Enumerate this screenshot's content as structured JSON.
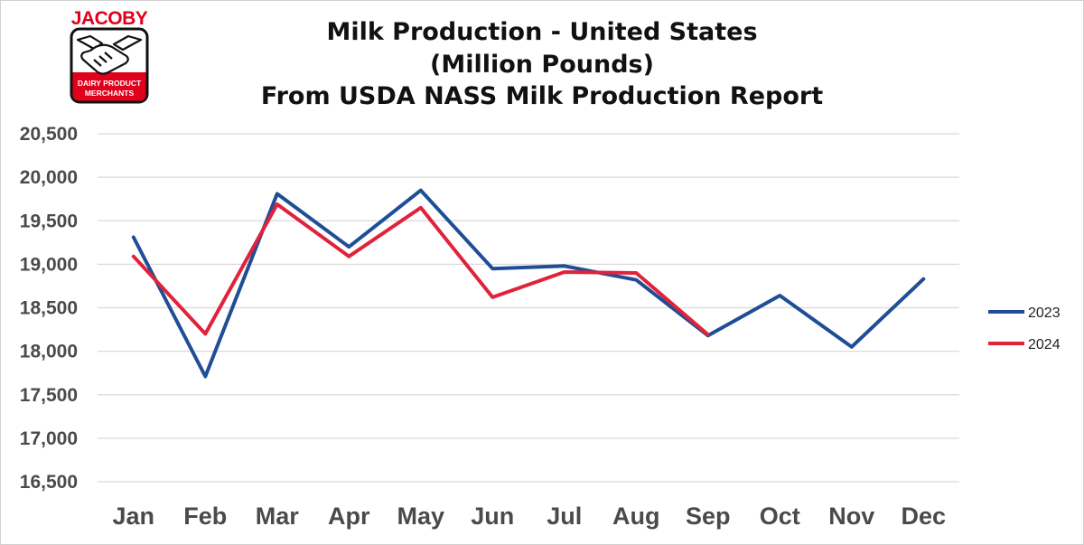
{
  "logo": {
    "name": "JACOBY",
    "tagline_line1": "DAIRY PRODUCT",
    "tagline_line2": "MERCHANTS",
    "colors": {
      "red": "#e0001b",
      "black": "#111111"
    }
  },
  "chart_data": {
    "type": "line",
    "title": [
      "Milk Production - United States",
      "(Million Pounds)",
      "From USDA NASS Milk Production Report"
    ],
    "xlabel": "",
    "ylabel": "",
    "categories": [
      "Jan",
      "Feb",
      "Mar",
      "Apr",
      "May",
      "Jun",
      "Jul",
      "Aug",
      "Sep",
      "Oct",
      "Nov",
      "Dec"
    ],
    "ylim": [
      16500,
      20500
    ],
    "yticks": [
      16500,
      17000,
      17500,
      18000,
      18500,
      19000,
      19500,
      20000,
      20500
    ],
    "ytick_labels": [
      "16,500",
      "17,000",
      "17,500",
      "18,000",
      "18,500",
      "19,000",
      "19,500",
      "20,000",
      "20,500"
    ],
    "grid": true,
    "legend_position": "right",
    "series": [
      {
        "name": "2023",
        "color": "#1f4e96",
        "values": [
          19310,
          17710,
          19810,
          19200,
          19850,
          18950,
          18980,
          18820,
          18180,
          18640,
          18050,
          18830
        ]
      },
      {
        "name": "2024",
        "color": "#e0223b",
        "values": [
          19090,
          18200,
          19690,
          19090,
          19650,
          18620,
          18910,
          18900,
          18190,
          null,
          null,
          null
        ]
      }
    ]
  }
}
